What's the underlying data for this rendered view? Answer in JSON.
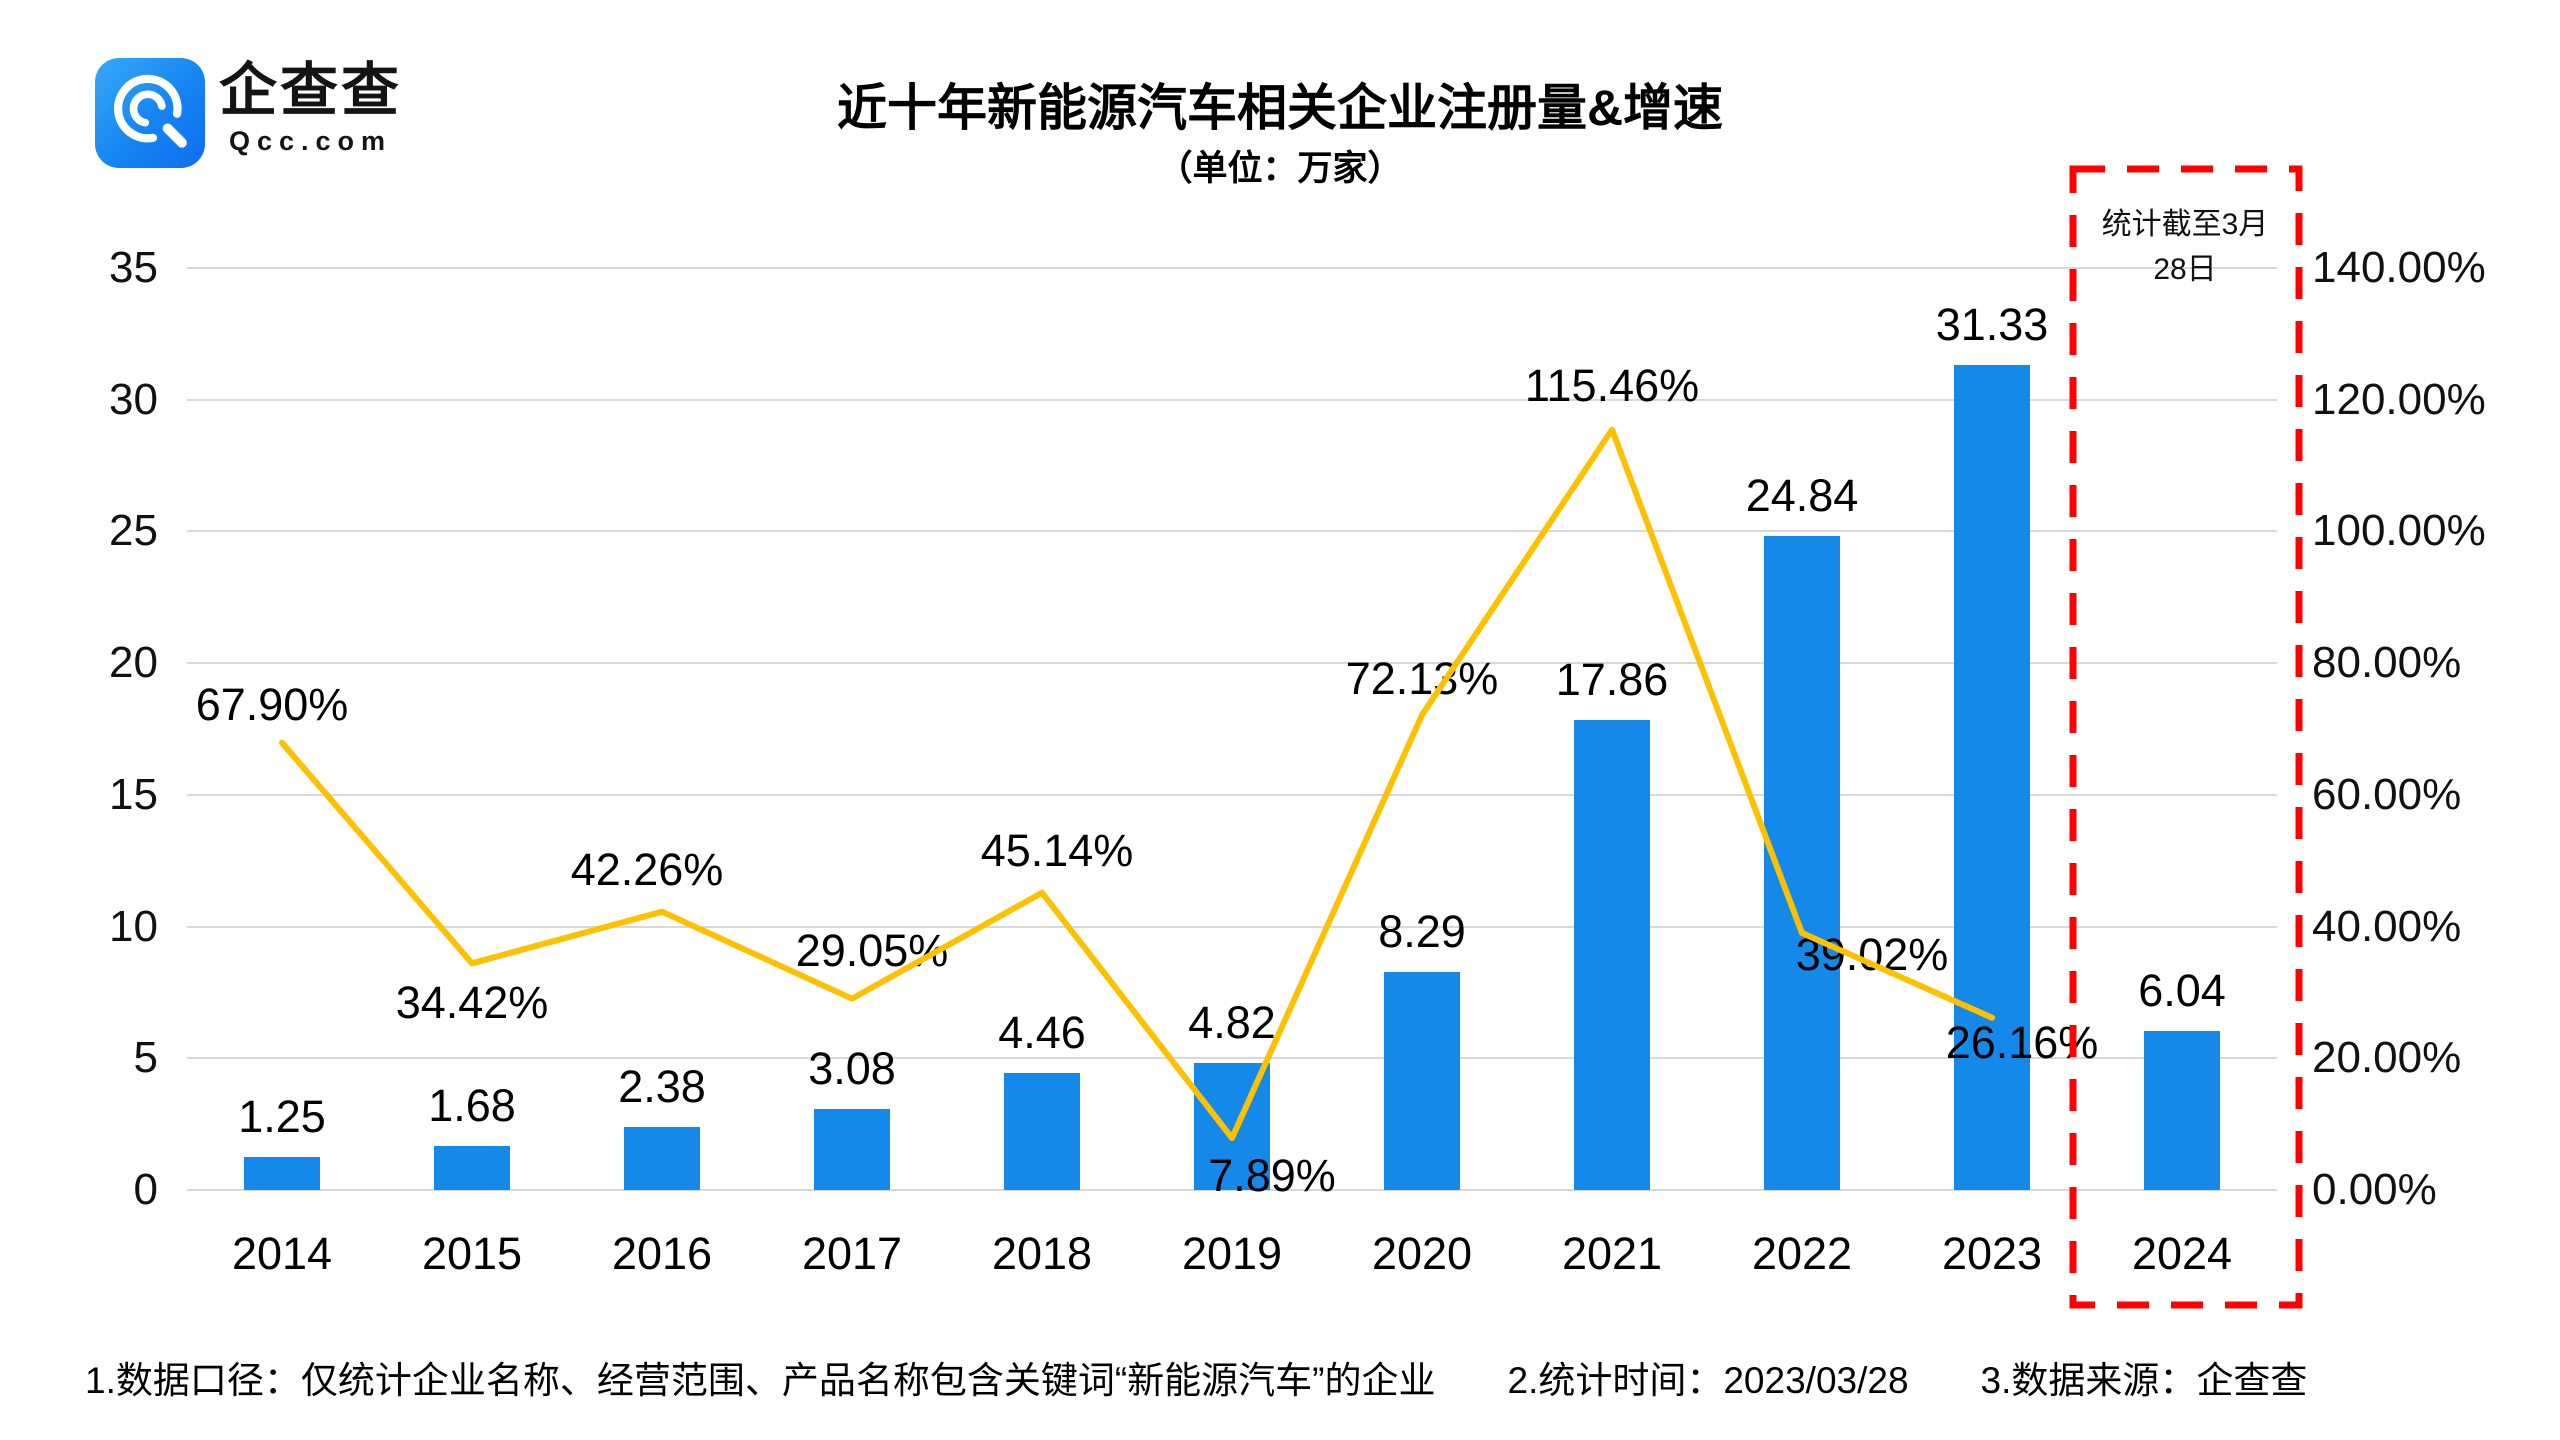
{
  "logo": {
    "brand_cn": "企查查",
    "brand_domain": "Qcc.com",
    "icon": "qcc-magnifier-icon"
  },
  "title": "近十年新能源汽车相关企业注册量&增速",
  "subtitle": "（单位：万家）",
  "annotation": {
    "text": "统计截至3月28日",
    "box_color": "#fe0000"
  },
  "footer": {
    "note1": "1.数据口径：仅统计企业名称、经营范围、产品名称包含关键词“新能源汽车”的企业",
    "note2": "2.统计时间：2023/03/28",
    "note3": "3.数据来源：企查查"
  },
  "chart_data": {
    "type": "bar",
    "subtype": "bar+line combo",
    "categories": [
      "2014",
      "2015",
      "2016",
      "2017",
      "2018",
      "2019",
      "2020",
      "2021",
      "2022",
      "2023",
      "2024"
    ],
    "series": [
      {
        "name": "注册量（万家）",
        "type": "bar",
        "color": "#1589e9",
        "values": [
          1.25,
          1.68,
          2.38,
          3.08,
          4.46,
          4.82,
          8.29,
          17.86,
          24.84,
          31.33,
          6.04
        ],
        "labels": [
          "1.25",
          "1.68",
          "2.38",
          "3.08",
          "4.46",
          "4.82",
          "8.29",
          "17.86",
          "24.84",
          "31.33",
          "6.04"
        ]
      },
      {
        "name": "增速",
        "type": "line",
        "color": "#ffc000",
        "values": [
          67.9,
          34.42,
          42.26,
          29.05,
          45.14,
          7.89,
          72.13,
          115.46,
          39.02,
          26.16,
          null
        ],
        "labels": [
          "67.90%",
          "34.42%",
          "42.26%",
          "29.05%",
          "45.14%",
          "7.89%",
          "72.13%",
          "115.46%",
          "39.02%",
          "26.16%",
          null
        ]
      }
    ],
    "left_axis": {
      "ticks": [
        0,
        5,
        10,
        15,
        20,
        25,
        30,
        35
      ],
      "range": [
        0,
        35
      ]
    },
    "right_axis": {
      "tick_labels": [
        "0.00%",
        "20.00%",
        "40.00%",
        "60.00%",
        "80.00%",
        "100.00%",
        "120.00%",
        "140.00%"
      ],
      "range_pct": [
        0,
        140
      ]
    },
    "grid": true,
    "gridline_color": "#d9d9d9",
    "legend_position": "none"
  }
}
